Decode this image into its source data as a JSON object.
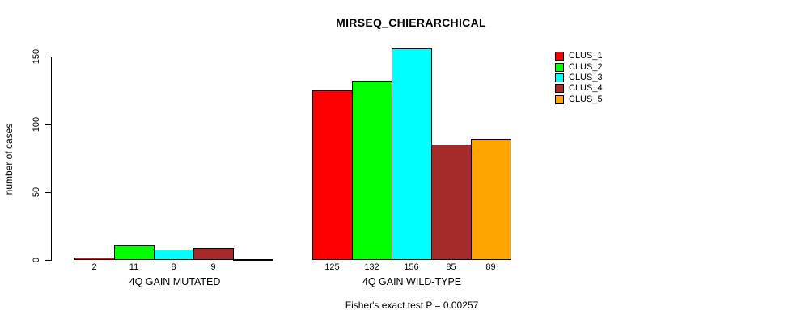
{
  "chart_data": {
    "type": "bar",
    "title": "MIRSEQ_CHIERARCHICAL",
    "ylabel": "number of cases",
    "xlabel": "",
    "ylim": [
      0,
      156
    ],
    "yticks": [
      0,
      50,
      100,
      150
    ],
    "grid": false,
    "legend_position": "top-right",
    "series": [
      {
        "name": "CLUS_1",
        "color": "#FF0000"
      },
      {
        "name": "CLUS_2",
        "color": "#00FF00"
      },
      {
        "name": "CLUS_3",
        "color": "#00FFFF"
      },
      {
        "name": "CLUS_4",
        "color": "#A52A2A"
      },
      {
        "name": "CLUS_5",
        "color": "#FFA500"
      }
    ],
    "groups": [
      {
        "label": "4Q GAIN MUTATED",
        "values": [
          2,
          11,
          8,
          9,
          0
        ],
        "value_labels": [
          "2",
          "11",
          "8",
          "9",
          ""
        ]
      },
      {
        "label": "4Q GAIN WILD-TYPE",
        "values": [
          125,
          132,
          156,
          85,
          89
        ],
        "value_labels": [
          "125",
          "132",
          "156",
          "85",
          "89"
        ]
      }
    ],
    "annotation": "Fisher's exact test P = 0.00257"
  }
}
